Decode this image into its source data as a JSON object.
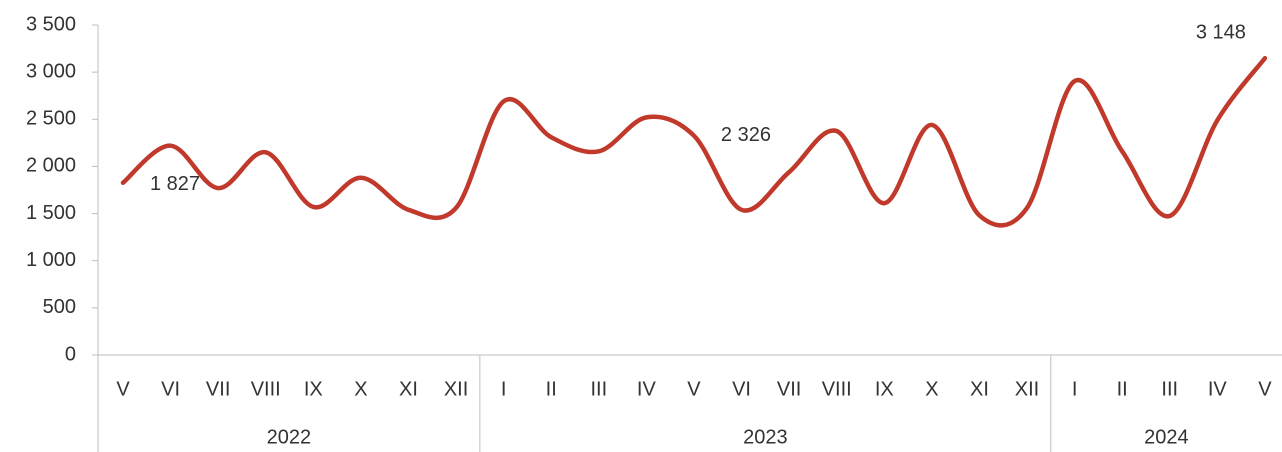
{
  "chart_data": {
    "type": "line",
    "categories": [
      "V",
      "VI",
      "VII",
      "VIII",
      "IX",
      "X",
      "XI",
      "XII",
      "I",
      "II",
      "III",
      "IV",
      "V",
      "VI",
      "VII",
      "VIII",
      "IX",
      "X",
      "XI",
      "XII",
      "I",
      "II",
      "III",
      "IV",
      "V"
    ],
    "years": [
      "2022",
      "2022",
      "2022",
      "2022",
      "2022",
      "2022",
      "2022",
      "2022",
      "2023",
      "2023",
      "2023",
      "2023",
      "2023",
      "2023",
      "2023",
      "2023",
      "2023",
      "2023",
      "2023",
      "2023",
      "2024",
      "2024",
      "2024",
      "2024",
      "2024"
    ],
    "series": [
      {
        "color": "#c0392b",
        "values": [
          1827,
          2220,
          1770,
          2150,
          1570,
          1880,
          1540,
          1560,
          2690,
          2310,
          2160,
          2520,
          2326,
          1540,
          1940,
          2375,
          1610,
          2440,
          1480,
          1560,
          2905,
          2160,
          1475,
          2490,
          3148
        ],
        "value_labels": [
          "1 827",
          null,
          null,
          null,
          null,
          null,
          null,
          null,
          null,
          null,
          null,
          null,
          "2 326",
          null,
          null,
          null,
          null,
          null,
          null,
          null,
          null,
          null,
          null,
          null,
          "3 148"
        ]
      }
    ],
    "ylim": [
      0,
      3500
    ],
    "yticks": [
      0,
      500,
      {
        "value": 1000,
        "label": "1 000"
      },
      {
        "value": 1500,
        "label": "1 500"
      },
      {
        "value": 2000,
        "label": "2 000"
      },
      {
        "value": 2500,
        "label": "2 500"
      },
      {
        "value": 3000,
        "label": "3 000"
      },
      {
        "value": 3500,
        "label": "3 500"
      }
    ],
    "smooth": true
  }
}
